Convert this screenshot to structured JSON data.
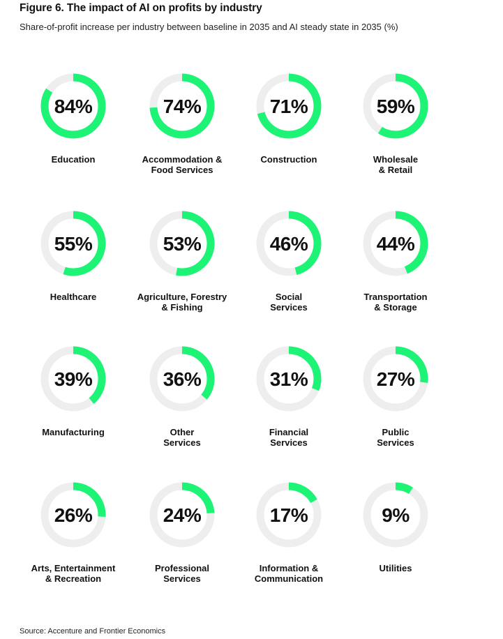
{
  "figure": {
    "title": "Figure 6. The impact of AI on profits by industry",
    "subtitle": "Share-of-profit increase per industry between baseline in 2035 and AI steady state in 2035 (%)",
    "source": "Source: Accenture and Frontier Economics"
  },
  "colors": {
    "accent": "#1DF475",
    "track": "#EEEEEE",
    "text": "#111111"
  },
  "chart_data": {
    "type": "donut",
    "unit": "%",
    "items": [
      {
        "category": "Education",
        "label_lines": [
          "Education"
        ],
        "value": 84,
        "display": "84%"
      },
      {
        "category": "Accommodation & Food Services",
        "label_lines": [
          "Accommodation &",
          "Food Services"
        ],
        "value": 74,
        "display": "74%"
      },
      {
        "category": "Construction",
        "label_lines": [
          "Construction"
        ],
        "value": 71,
        "display": "71%"
      },
      {
        "category": "Wholesale & Retail",
        "label_lines": [
          "Wholesale",
          "& Retail"
        ],
        "value": 59,
        "display": "59%"
      },
      {
        "category": "Healthcare",
        "label_lines": [
          "Healthcare"
        ],
        "value": 55,
        "display": "55%"
      },
      {
        "category": "Agriculture, Forestry & Fishing",
        "label_lines": [
          "Agriculture, Forestry",
          "& Fishing"
        ],
        "value": 53,
        "display": "53%"
      },
      {
        "category": "Social Services",
        "label_lines": [
          "Social",
          "Services"
        ],
        "value": 46,
        "display": "46%"
      },
      {
        "category": "Transportation & Storage",
        "label_lines": [
          "Transportation",
          "& Storage"
        ],
        "value": 44,
        "display": "44%"
      },
      {
        "category": "Manufacturing",
        "label_lines": [
          "Manufacturing"
        ],
        "value": 39,
        "display": "39%"
      },
      {
        "category": "Other Services",
        "label_lines": [
          "Other",
          "Services"
        ],
        "value": 36,
        "display": "36%"
      },
      {
        "category": "Financial Services",
        "label_lines": [
          "Financial",
          "Services"
        ],
        "value": 31,
        "display": "31%"
      },
      {
        "category": "Public Services",
        "label_lines": [
          "Public",
          "Services"
        ],
        "value": 27,
        "display": "27%"
      },
      {
        "category": "Arts, Entertainment & Recreation",
        "label_lines": [
          "Arts, Entertainment",
          "& Recreation"
        ],
        "value": 26,
        "display": "26%"
      },
      {
        "category": "Professional Services",
        "label_lines": [
          "Professional",
          "Services"
        ],
        "value": 24,
        "display": "24%"
      },
      {
        "category": "Information & Communication",
        "label_lines": [
          "Information &",
          "Communication"
        ],
        "value": 17,
        "display": "17%"
      },
      {
        "category": "Utilities",
        "label_lines": [
          "Utilities"
        ],
        "value": 9,
        "display": "9%"
      }
    ]
  }
}
